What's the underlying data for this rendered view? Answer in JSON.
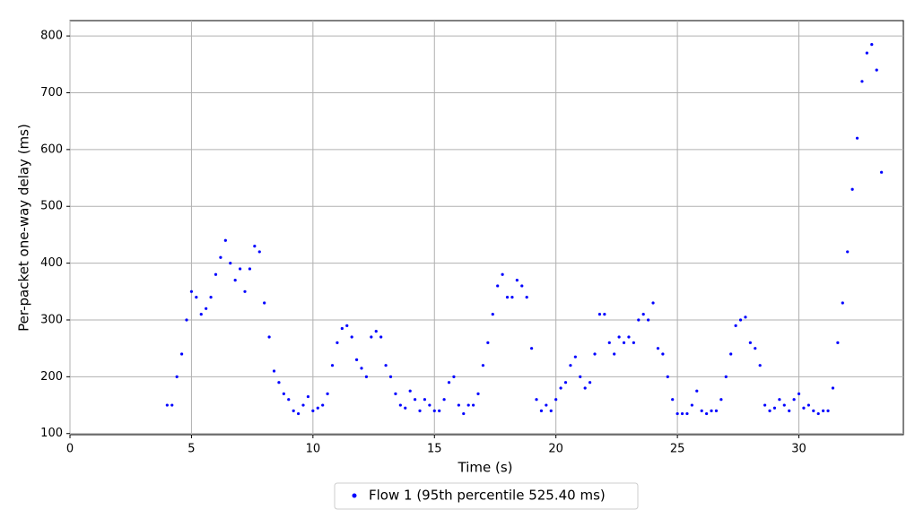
{
  "chart_data": {
    "type": "scatter",
    "x_label": "Time (s)",
    "y_label": "Per-packet one-way delay (ms)",
    "xlim": [
      0,
      34.3
    ],
    "ylim": [
      98,
      827
    ],
    "xticks": [
      0,
      5,
      10,
      15,
      20,
      25,
      30
    ],
    "yticks": [
      100,
      200,
      300,
      400,
      500,
      600,
      700,
      800
    ],
    "grid": true,
    "legend": "bottom",
    "series": [
      {
        "name": "Flow 1 (95th percentile 525.40 ms)",
        "color": "#0000ff",
        "x": [
          4.0,
          4.2,
          4.4,
          4.6,
          4.8,
          5.0,
          5.2,
          5.4,
          5.6,
          5.8,
          6.0,
          6.2,
          6.4,
          6.6,
          6.8,
          7.0,
          7.2,
          7.4,
          7.6,
          7.8,
          8.0,
          8.2,
          8.4,
          8.6,
          8.8,
          9.0,
          9.2,
          9.4,
          9.6,
          9.8,
          10.0,
          10.2,
          10.4,
          10.6,
          10.8,
          11.0,
          11.2,
          11.4,
          11.6,
          11.8,
          12.0,
          12.2,
          12.4,
          12.6,
          12.8,
          13.0,
          13.2,
          13.4,
          13.6,
          13.8,
          14.0,
          14.2,
          14.4,
          14.6,
          14.8,
          15.0,
          15.2,
          15.4,
          15.6,
          15.8,
          16.0,
          16.2,
          16.4,
          16.6,
          16.8,
          17.0,
          17.2,
          17.4,
          17.6,
          17.8,
          18.0,
          18.2,
          18.4,
          18.6,
          18.8,
          19.0,
          19.2,
          19.4,
          19.6,
          19.8,
          20.0,
          20.2,
          20.4,
          20.6,
          20.8,
          21.0,
          21.2,
          21.4,
          21.6,
          21.8,
          22.0,
          22.2,
          22.4,
          22.6,
          22.8,
          23.0,
          23.2,
          23.4,
          23.6,
          23.8,
          24.0,
          24.2,
          24.4,
          24.6,
          24.8,
          25.0,
          25.2,
          25.4,
          25.6,
          25.8,
          26.0,
          26.2,
          26.4,
          26.6,
          26.8,
          27.0,
          27.2,
          27.4,
          27.6,
          27.8,
          28.0,
          28.2,
          28.4,
          28.6,
          28.8,
          29.0,
          29.2,
          29.4,
          29.6,
          29.8,
          30.0,
          30.2,
          30.4,
          30.6,
          30.8,
          31.0,
          31.2,
          31.4,
          31.6,
          31.8,
          32.0,
          32.2,
          32.4,
          32.6,
          32.8,
          33.0,
          33.2,
          33.4
        ],
        "values": [
          150,
          150,
          200,
          240,
          300,
          350,
          340,
          310,
          320,
          340,
          380,
          410,
          440,
          400,
          370,
          390,
          350,
          390,
          430,
          420,
          330,
          270,
          210,
          190,
          170,
          160,
          140,
          135,
          150,
          165,
          140,
          145,
          150,
          170,
          220,
          260,
          285,
          290,
          270,
          230,
          215,
          200,
          270,
          280,
          270,
          220,
          200,
          170,
          150,
          145,
          175,
          160,
          140,
          160,
          150,
          140,
          140,
          160,
          190,
          200,
          150,
          135,
          150,
          150,
          170,
          220,
          260,
          310,
          360,
          380,
          340,
          340,
          370,
          360,
          340,
          250,
          160,
          140,
          150,
          140,
          160,
          180,
          190,
          220,
          235,
          200,
          180,
          190,
          240,
          310,
          310,
          260,
          240,
          270,
          260,
          270,
          260,
          300,
          310,
          300,
          330,
          250,
          240,
          200,
          160,
          135,
          135,
          135,
          150,
          175,
          140,
          135,
          140,
          140,
          160,
          200,
          240,
          290,
          300,
          305,
          260,
          250,
          220,
          150,
          140,
          145,
          160,
          150,
          140,
          160,
          170,
          145,
          150,
          140,
          135,
          140,
          140,
          180,
          260,
          330,
          420,
          530,
          620,
          720,
          770,
          785,
          740,
          560
        ]
      }
    ]
  }
}
